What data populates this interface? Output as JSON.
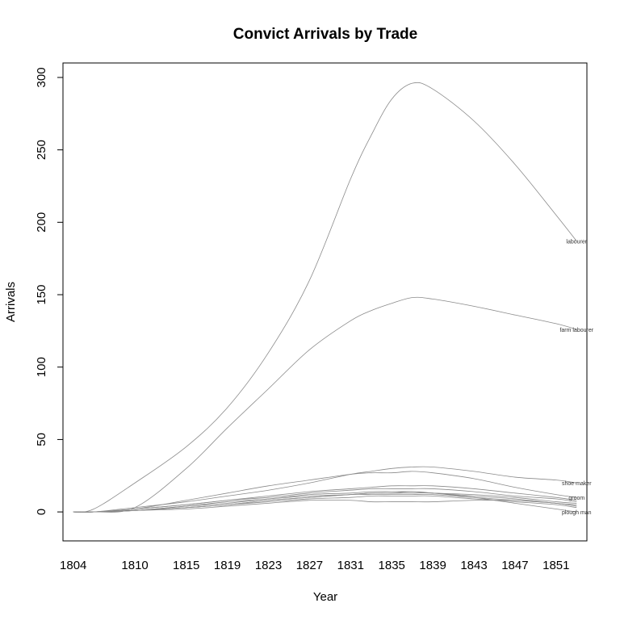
{
  "chart_data": {
    "type": "line",
    "title": "Convict Arrivals by Trade",
    "xlabel": "Year",
    "ylabel": "Arrivals",
    "x": [
      1804,
      1806,
      1810,
      1815,
      1819,
      1823,
      1827,
      1831,
      1833,
      1835,
      1837,
      1839,
      1843,
      1847,
      1851,
      1853
    ],
    "x_ticks": [
      "1804",
      "1810",
      "1815",
      "1819",
      "1823",
      "1827",
      "1831",
      "1835",
      "1839",
      "1843",
      "1847",
      "1851"
    ],
    "y_ticks": [
      "0",
      "50",
      "100",
      "150",
      "200",
      "250",
      "300"
    ],
    "xlim": [
      1803,
      1854
    ],
    "ylim": [
      -20,
      310
    ],
    "grid": false,
    "line_color": "#8a8a8a",
    "series": [
      {
        "name": "labourer",
        "values": [
          0,
          2,
          20,
          45,
          72,
          110,
          160,
          230,
          260,
          285,
          296,
          292,
          270,
          240,
          205,
          187
        ]
      },
      {
        "name": "farm labourer",
        "values": [
          0,
          0,
          3,
          30,
          58,
          85,
          112,
          132,
          139,
          144,
          148,
          147,
          142,
          136,
          130,
          126
        ]
      },
      {
        "name": "shoe maker",
        "values": [
          0,
          0,
          3,
          7,
          11,
          15,
          20,
          26,
          28,
          30,
          31,
          31,
          28,
          24,
          22,
          20
        ]
      },
      {
        "name": "groom",
        "values": [
          0,
          0,
          2,
          8,
          13,
          18,
          22,
          26,
          27,
          27,
          28,
          27,
          23,
          17,
          12,
          10
        ]
      },
      {
        "name": "",
        "values": [
          0,
          0,
          2,
          5,
          8,
          11,
          14,
          16,
          17,
          18,
          18,
          18,
          16,
          13,
          10,
          8
        ]
      },
      {
        "name": "",
        "values": [
          0,
          0,
          2,
          5,
          8,
          10,
          13,
          15,
          16,
          16,
          16,
          16,
          14,
          11,
          9,
          7
        ]
      },
      {
        "name": "",
        "values": [
          0,
          0,
          1,
          4,
          7,
          9,
          12,
          13,
          14,
          14,
          14,
          13,
          12,
          10,
          7,
          6
        ]
      },
      {
        "name": "",
        "values": [
          0,
          0,
          1,
          4,
          6,
          9,
          11,
          12,
          13,
          13,
          13,
          13,
          11,
          9,
          6,
          5
        ]
      },
      {
        "name": "",
        "values": [
          0,
          0,
          1,
          3,
          5,
          8,
          10,
          12,
          12,
          12,
          12,
          12,
          10,
          8,
          6,
          4
        ]
      },
      {
        "name": "",
        "values": [
          0,
          0,
          1,
          3,
          5,
          7,
          9,
          10,
          11,
          11,
          11,
          11,
          9,
          7,
          5,
          3
        ]
      },
      {
        "name": "",
        "values": [
          0,
          0,
          1,
          2,
          4,
          6,
          8,
          8,
          7,
          7,
          7,
          7,
          8,
          8,
          6,
          4
        ]
      },
      {
        "name": "plough man",
        "values": [
          0,
          0,
          1,
          3,
          5,
          8,
          10,
          12,
          13,
          13,
          14,
          13,
          10,
          6,
          2,
          0
        ]
      }
    ]
  }
}
